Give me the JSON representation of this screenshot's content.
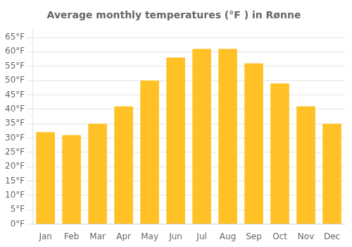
{
  "chart_data": {
    "type": "bar",
    "title": "Average monthly temperatures (°F ) in Rønne",
    "categories": [
      "Jan",
      "Feb",
      "Mar",
      "Apr",
      "May",
      "Jun",
      "Jul",
      "Aug",
      "Sep",
      "Oct",
      "Nov",
      "Dec"
    ],
    "values": [
      32,
      31,
      35,
      41,
      50,
      58,
      61,
      61,
      56,
      49,
      41,
      35
    ],
    "color": "#FFC125",
    "ylim": [
      0,
      68
    ],
    "yticks": [
      {
        "value": 0,
        "label": "0°F"
      },
      {
        "value": 5,
        "label": "5°F"
      },
      {
        "value": 10,
        "label": "10°F"
      },
      {
        "value": 15,
        "label": "15°F"
      },
      {
        "value": 20,
        "label": "20°F"
      },
      {
        "value": 25,
        "label": "25°F"
      },
      {
        "value": 30,
        "label": "30°F"
      },
      {
        "value": 35,
        "label": "35°F"
      },
      {
        "value": 40,
        "label": "40°F"
      },
      {
        "value": 45,
        "label": "45°F"
      },
      {
        "value": 50,
        "label": "50°F"
      },
      {
        "value": 55,
        "label": "55°F"
      },
      {
        "value": 60,
        "label": "60°F"
      },
      {
        "value": 65,
        "label": "65°F"
      }
    ],
    "grid": true
  }
}
